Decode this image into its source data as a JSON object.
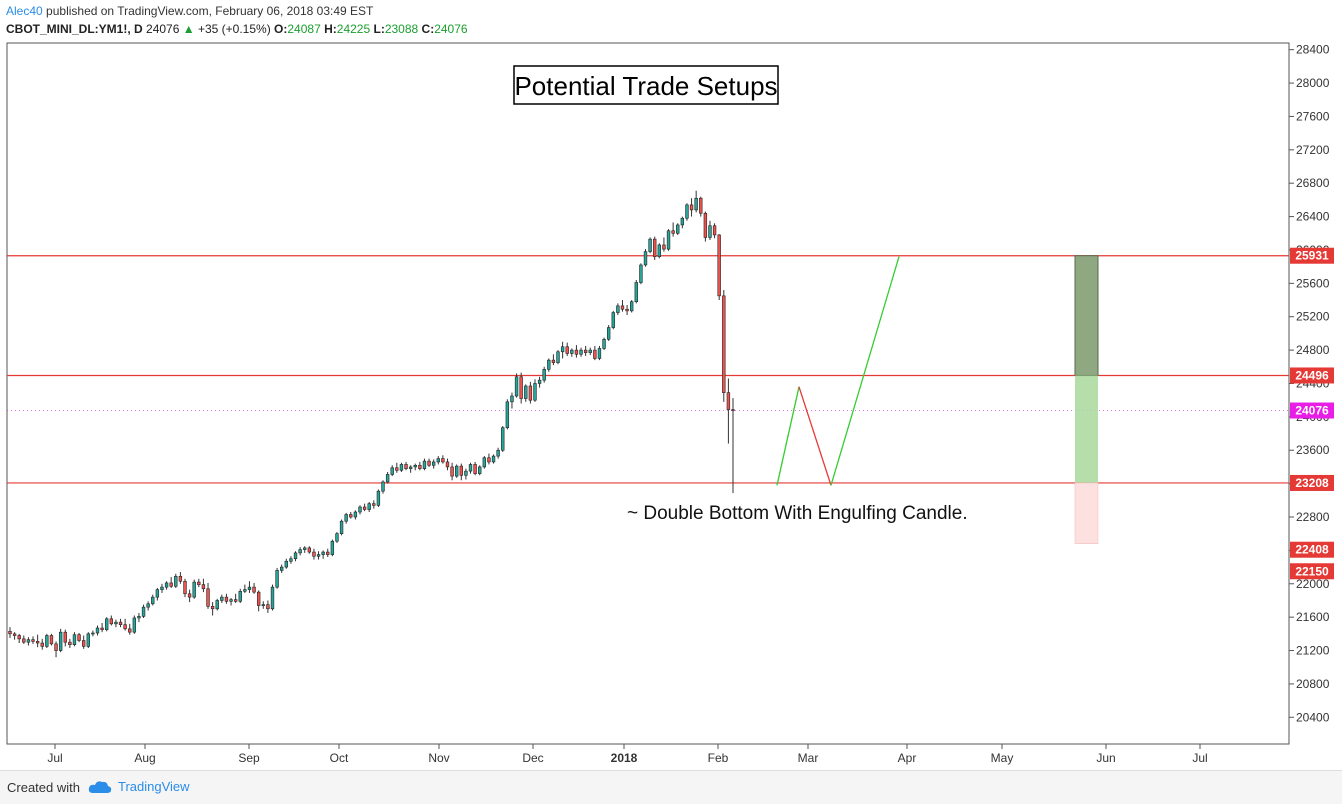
{
  "header": {
    "author": "Alec40",
    "published_text": "published on TradingView.com, February 06, 2018 03:49 EST",
    "symbol": "CBOT_MINI_DL:YM1!, D",
    "last": "24076",
    "change_arrow": "▲",
    "change": "+35 (+0.15%)",
    "o_label": "O:",
    "o_val": "24087",
    "h_label": "H:",
    "h_val": "24225",
    "l_label": "L:",
    "l_val": "23088",
    "c_label": "C:",
    "c_val": "24076"
  },
  "footer": {
    "created_with": "Created with",
    "brand": "TradingView"
  },
  "colors": {
    "up": "#26a69a",
    "down": "#ef5350",
    "level_line": "#e53935",
    "price_tag": "#e53935",
    "current_tag": "#e91ee6",
    "path_up": "#32cd32",
    "path_down": "#e53935",
    "target_box": "#8fa882",
    "entry_box": "#a8d89b",
    "stop_box": "#fde0e0"
  },
  "chart_data": {
    "type": "candlestick",
    "title": "Potential Trade Setups",
    "annotation": "~ Double Bottom With Engulfing Candle.",
    "x_ticks": [
      "Jul",
      "Aug",
      "Sep",
      "Oct",
      "Nov",
      "Dec",
      "2018",
      "Feb",
      "Mar",
      "Apr",
      "May",
      "Jun",
      "Jul"
    ],
    "y_ticks": [
      20400,
      20800,
      21200,
      21600,
      22000,
      22400,
      22800,
      23200,
      23600,
      24000,
      24400,
      24800,
      25200,
      25600,
      26000,
      26400,
      26800,
      27200,
      27600,
      28000,
      28400
    ],
    "ylim": [
      20080,
      28480
    ],
    "horizontal_levels": [
      25931,
      24496,
      23208
    ],
    "price_tags": [
      "25931",
      "24496",
      "24076",
      "23208",
      "22408",
      "22150"
    ],
    "current_price": 24076,
    "projection_path": [
      [
        0,
        23180
      ],
      [
        1,
        24360
      ],
      [
        2,
        23180
      ],
      [
        3,
        25920
      ]
    ],
    "position_boxes": {
      "target": [
        24496,
        25931
      ],
      "entry": [
        23208,
        24496
      ],
      "stop": [
        22480,
        23208
      ]
    },
    "candles": [
      [
        21430,
        21480,
        21350,
        21400
      ],
      [
        21400,
        21420,
        21330,
        21380
      ],
      [
        21380,
        21400,
        21290,
        21340
      ],
      [
        21340,
        21380,
        21280,
        21300
      ],
      [
        21300,
        21360,
        21260,
        21330
      ],
      [
        21330,
        21370,
        21280,
        21310
      ],
      [
        21310,
        21390,
        21240,
        21290
      ],
      [
        21290,
        21340,
        21210,
        21250
      ],
      [
        21250,
        21400,
        21230,
        21380
      ],
      [
        21380,
        21400,
        21260,
        21280
      ],
      [
        21280,
        21310,
        21120,
        21200
      ],
      [
        21200,
        21460,
        21180,
        21420
      ],
      [
        21420,
        21450,
        21250,
        21300
      ],
      [
        21300,
        21340,
        21230,
        21270
      ],
      [
        21270,
        21420,
        21250,
        21390
      ],
      [
        21390,
        21410,
        21300,
        21320
      ],
      [
        21320,
        21380,
        21220,
        21250
      ],
      [
        21250,
        21420,
        21230,
        21400
      ],
      [
        21400,
        21440,
        21370,
        21410
      ],
      [
        21410,
        21500,
        21380,
        21470
      ],
      [
        21470,
        21530,
        21420,
        21450
      ],
      [
        21450,
        21600,
        21430,
        21580
      ],
      [
        21580,
        21620,
        21500,
        21520
      ],
      [
        21520,
        21570,
        21480,
        21540
      ],
      [
        21540,
        21580,
        21480,
        21510
      ],
      [
        21510,
        21580,
        21440,
        21460
      ],
      [
        21460,
        21520,
        21390,
        21420
      ],
      [
        21420,
        21620,
        21400,
        21590
      ],
      [
        21590,
        21650,
        21540,
        21610
      ],
      [
        21610,
        21750,
        21590,
        21720
      ],
      [
        21720,
        21790,
        21680,
        21760
      ],
      [
        21760,
        21870,
        21740,
        21840
      ],
      [
        21840,
        21950,
        21800,
        21930
      ],
      [
        21930,
        22000,
        21890,
        21960
      ],
      [
        21960,
        22030,
        21930,
        22010
      ],
      [
        22010,
        22080,
        21950,
        21970
      ],
      [
        21970,
        22120,
        21950,
        22090
      ],
      [
        22090,
        22140,
        22000,
        22030
      ],
      [
        22030,
        22060,
        21840,
        21880
      ],
      [
        21880,
        21930,
        21780,
        21840
      ],
      [
        21840,
        22050,
        21820,
        22020
      ],
      [
        22020,
        22060,
        21960,
        21990
      ],
      [
        21990,
        22060,
        21900,
        21940
      ],
      [
        21940,
        22010,
        21700,
        21730
      ],
      [
        21730,
        21780,
        21620,
        21700
      ],
      [
        21700,
        21820,
        21680,
        21800
      ],
      [
        21800,
        21870,
        21770,
        21840
      ],
      [
        21840,
        21880,
        21760,
        21790
      ],
      [
        21790,
        21830,
        21740,
        21810
      ],
      [
        21810,
        21880,
        21770,
        21790
      ],
      [
        21790,
        21940,
        21770,
        21910
      ],
      [
        21910,
        21990,
        21890,
        21930
      ],
      [
        21930,
        22030,
        21890,
        21960
      ],
      [
        21960,
        22010,
        21880,
        21900
      ],
      [
        21900,
        21920,
        21670,
        21740
      ],
      [
        21740,
        21790,
        21700,
        21750
      ],
      [
        21750,
        21800,
        21650,
        21700
      ],
      [
        21700,
        21990,
        21680,
        21960
      ],
      [
        21960,
        22190,
        21940,
        22160
      ],
      [
        22160,
        22230,
        22130,
        22200
      ],
      [
        22200,
        22300,
        22180,
        22270
      ],
      [
        22270,
        22330,
        22240,
        22300
      ],
      [
        22300,
        22390,
        22270,
        22370
      ],
      [
        22370,
        22440,
        22340,
        22410
      ],
      [
        22410,
        22450,
        22370,
        22430
      ],
      [
        22430,
        22450,
        22360,
        22380
      ],
      [
        22380,
        22420,
        22290,
        22330
      ],
      [
        22330,
        22390,
        22290,
        22350
      ],
      [
        22350,
        22400,
        22300,
        22380
      ],
      [
        22380,
        22420,
        22320,
        22350
      ],
      [
        22350,
        22530,
        22330,
        22510
      ],
      [
        22510,
        22620,
        22490,
        22600
      ],
      [
        22600,
        22770,
        22580,
        22750
      ],
      [
        22750,
        22850,
        22720,
        22830
      ],
      [
        22830,
        22860,
        22780,
        22800
      ],
      [
        22800,
        22880,
        22770,
        22860
      ],
      [
        22860,
        22940,
        22830,
        22920
      ],
      [
        22920,
        22960,
        22870,
        22890
      ],
      [
        22890,
        22980,
        22860,
        22960
      ],
      [
        22960,
        23000,
        22900,
        22940
      ],
      [
        22940,
        23130,
        22920,
        23110
      ],
      [
        23110,
        23240,
        23080,
        23220
      ],
      [
        23220,
        23340,
        23200,
        23310
      ],
      [
        23310,
        23420,
        23290,
        23390
      ],
      [
        23390,
        23450,
        23330,
        23360
      ],
      [
        23360,
        23450,
        23340,
        23430
      ],
      [
        23430,
        23460,
        23360,
        23380
      ],
      [
        23380,
        23420,
        23330,
        23400
      ],
      [
        23400,
        23440,
        23360,
        23420
      ],
      [
        23420,
        23460,
        23360,
        23380
      ],
      [
        23380,
        23500,
        23360,
        23470
      ],
      [
        23470,
        23500,
        23400,
        23420
      ],
      [
        23420,
        23490,
        23380,
        23460
      ],
      [
        23460,
        23530,
        23430,
        23500
      ],
      [
        23500,
        23540,
        23440,
        23460
      ],
      [
        23460,
        23500,
        23360,
        23400
      ],
      [
        23400,
        23450,
        23240,
        23290
      ],
      [
        23290,
        23430,
        23270,
        23410
      ],
      [
        23410,
        23440,
        23240,
        23300
      ],
      [
        23300,
        23380,
        23250,
        23350
      ],
      [
        23350,
        23450,
        23320,
        23430
      ],
      [
        23430,
        23460,
        23300,
        23320
      ],
      [
        23320,
        23420,
        23300,
        23400
      ],
      [
        23400,
        23530,
        23380,
        23510
      ],
      [
        23510,
        23560,
        23430,
        23460
      ],
      [
        23460,
        23550,
        23440,
        23530
      ],
      [
        23530,
        23630,
        23500,
        23600
      ],
      [
        23600,
        23890,
        23580,
        23870
      ],
      [
        23870,
        24210,
        23850,
        24180
      ],
      [
        24180,
        24290,
        24100,
        24250
      ],
      [
        24250,
        24520,
        24230,
        24480
      ],
      [
        24480,
        24530,
        24160,
        24220
      ],
      [
        24220,
        24390,
        24180,
        24370
      ],
      [
        24370,
        24420,
        24160,
        24200
      ],
      [
        24200,
        24450,
        24180,
        24400
      ],
      [
        24400,
        24480,
        24350,
        24440
      ],
      [
        24440,
        24600,
        24410,
        24570
      ],
      [
        24570,
        24700,
        24540,
        24680
      ],
      [
        24680,
        24750,
        24620,
        24650
      ],
      [
        24650,
        24800,
        24630,
        24780
      ],
      [
        24780,
        24900,
        24700,
        24840
      ],
      [
        24840,
        24890,
        24730,
        24760
      ],
      [
        24760,
        24820,
        24720,
        24800
      ],
      [
        24800,
        24860,
        24710,
        24750
      ],
      [
        24750,
        24830,
        24720,
        24800
      ],
      [
        24800,
        24850,
        24730,
        24770
      ],
      [
        24770,
        24830,
        24740,
        24800
      ],
      [
        24800,
        24850,
        24680,
        24700
      ],
      [
        24700,
        24850,
        24680,
        24820
      ],
      [
        24820,
        24950,
        24800,
        24930
      ],
      [
        24930,
        25100,
        24910,
        25070
      ],
      [
        25070,
        25270,
        25050,
        25250
      ],
      [
        25250,
        25360,
        25220,
        25330
      ],
      [
        25330,
        25400,
        25260,
        25290
      ],
      [
        25290,
        25340,
        25220,
        25270
      ],
      [
        25270,
        25400,
        25250,
        25380
      ],
      [
        25380,
        25640,
        25360,
        25610
      ],
      [
        25610,
        25840,
        25590,
        25820
      ],
      [
        25820,
        26010,
        25800,
        25980
      ],
      [
        25980,
        26150,
        25960,
        26130
      ],
      [
        26130,
        26160,
        25880,
        25920
      ],
      [
        25920,
        26080,
        25900,
        26060
      ],
      [
        26060,
        26150,
        25980,
        26010
      ],
      [
        26010,
        26250,
        25990,
        26230
      ],
      [
        26230,
        26330,
        26160,
        26200
      ],
      [
        26200,
        26320,
        26180,
        26300
      ],
      [
        26300,
        26400,
        26260,
        26380
      ],
      [
        26380,
        26560,
        26350,
        26540
      ],
      [
        26540,
        26620,
        26400,
        26480
      ],
      [
        26480,
        26710,
        26450,
        26620
      ],
      [
        26620,
        26640,
        26400,
        26440
      ],
      [
        26440,
        26460,
        26100,
        26150
      ],
      [
        26150,
        26350,
        26120,
        26290
      ],
      [
        26290,
        26320,
        26140,
        26180
      ],
      [
        26180,
        26190,
        25400,
        25450
      ],
      [
        25450,
        25520,
        24180,
        24290
      ],
      [
        24290,
        24460,
        23680,
        24087
      ],
      [
        24087,
        24225,
        23088,
        24076
      ]
    ]
  }
}
